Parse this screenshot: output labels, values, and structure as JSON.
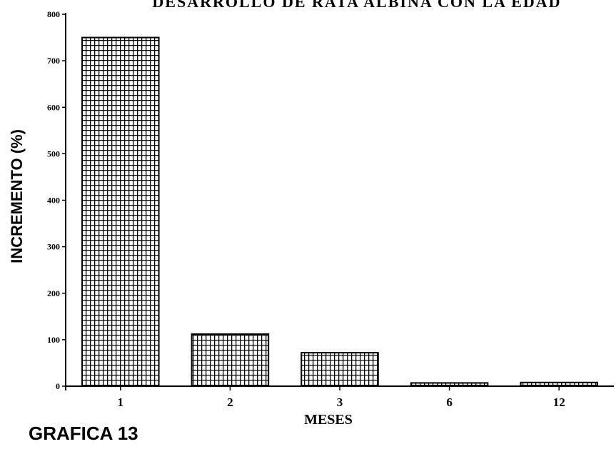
{
  "chart_data": {
    "type": "bar",
    "title": "DESARROLLO DE RATA ALBINA CON LA EDAD",
    "xlabel": "MESES",
    "ylabel": "INCREMENTO (%)",
    "categories": [
      "1",
      "2",
      "3",
      "6",
      "12"
    ],
    "values": [
      750,
      112,
      72,
      7,
      8
    ],
    "ylim": [
      0,
      800
    ],
    "yticks": [
      0,
      100,
      200,
      300,
      400,
      500,
      600,
      700,
      800
    ],
    "grid": false,
    "legend": "none",
    "bar_fill": "crosshatch",
    "colors": {
      "bar_fill": "#ffffff",
      "bar_pattern": "#000000",
      "axis": "#000000"
    }
  },
  "figure_label": "GRAFICA 13"
}
